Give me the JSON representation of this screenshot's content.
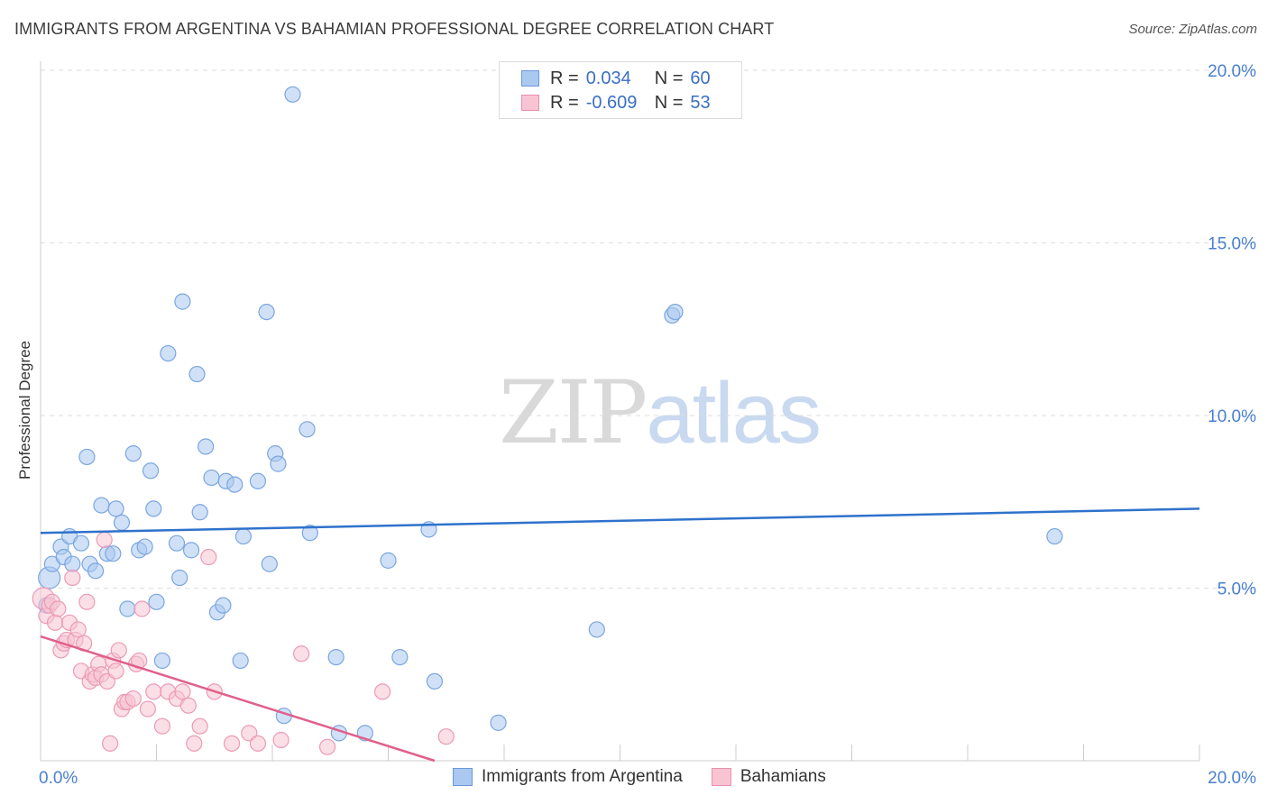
{
  "header": {
    "title": "IMMIGRANTS FROM ARGENTINA VS BAHAMIAN PROFESSIONAL DEGREE CORRELATION CHART",
    "source": "Source: ZipAtlas.com"
  },
  "watermark": {
    "zip": "ZIP",
    "atlas": "atlas"
  },
  "legend": {
    "rows": [
      {
        "r_label": "R =",
        "r_value": "0.034",
        "n_label": "N =",
        "n_value": "60",
        "color": "#aac8f0",
        "border": "#6a9ad8"
      },
      {
        "r_label": "R =",
        "r_value": "-0.609",
        "n_label": "N =",
        "n_value": "53",
        "color": "#f8c4d4",
        "border": "#e890ae"
      }
    ]
  },
  "bottom_legend": {
    "series1": "Immigrants from Argentina",
    "series2": "Bahamians"
  },
  "colors": {
    "blue_fill": "#aac8f0",
    "blue_stroke": "#7aa6e0",
    "blue_line": "#2f72cc",
    "pink_fill": "#f8c4d4",
    "pink_stroke": "#ec9ab5",
    "pink_line": "#e0608c",
    "grid": "#dddddd",
    "tick_text": "#4a7fd0"
  },
  "chart_data": {
    "type": "scatter",
    "title": "IMMIGRANTS FROM ARGENTINA VS BAHAMIAN PROFESSIONAL DEGREE CORRELATION CHART",
    "xlabel": "",
    "ylabel": "Professional Degree",
    "xlim": [
      0,
      20
    ],
    "ylim": [
      0,
      20
    ],
    "x_tick_labels": [
      "0.0%",
      "20.0%"
    ],
    "y_ticks": [
      {
        "value": 5,
        "label": "5.0%"
      },
      {
        "value": 10,
        "label": "10.0%"
      },
      {
        "value": 15,
        "label": "15.0%"
      },
      {
        "value": 20,
        "label": "20.0%"
      }
    ],
    "grid": true,
    "series": [
      {
        "name": "Immigrants from Argentina",
        "R": 0.034,
        "N": 60,
        "trend": {
          "x": [
            0,
            20
          ],
          "y": [
            6.6,
            7.3
          ]
        },
        "points": [
          [
            0.15,
            5.3
          ],
          [
            0.2,
            5.7
          ],
          [
            0.35,
            6.2
          ],
          [
            0.4,
            5.9
          ],
          [
            0.5,
            6.5
          ],
          [
            0.55,
            5.7
          ],
          [
            0.7,
            6.3
          ],
          [
            0.8,
            8.8
          ],
          [
            0.85,
            5.7
          ],
          [
            0.95,
            5.5
          ],
          [
            1.05,
            7.4
          ],
          [
            1.15,
            6.0
          ],
          [
            1.25,
            6.0
          ],
          [
            1.3,
            7.3
          ],
          [
            1.4,
            6.9
          ],
          [
            1.5,
            4.4
          ],
          [
            1.6,
            8.9
          ],
          [
            1.7,
            6.1
          ],
          [
            1.8,
            6.2
          ],
          [
            1.9,
            8.4
          ],
          [
            1.95,
            7.3
          ],
          [
            2.0,
            4.6
          ],
          [
            2.1,
            2.9
          ],
          [
            2.2,
            11.8
          ],
          [
            2.35,
            6.3
          ],
          [
            2.4,
            5.3
          ],
          [
            2.45,
            13.3
          ],
          [
            2.6,
            6.1
          ],
          [
            2.7,
            11.2
          ],
          [
            2.75,
            7.2
          ],
          [
            2.85,
            9.1
          ],
          [
            2.95,
            8.2
          ],
          [
            3.05,
            4.3
          ],
          [
            3.15,
            4.5
          ],
          [
            3.2,
            8.1
          ],
          [
            3.35,
            8.0
          ],
          [
            3.45,
            2.9
          ],
          [
            3.5,
            6.5
          ],
          [
            3.75,
            8.1
          ],
          [
            3.9,
            13.0
          ],
          [
            3.95,
            5.7
          ],
          [
            4.05,
            8.9
          ],
          [
            4.1,
            8.6
          ],
          [
            4.2,
            1.3
          ],
          [
            4.35,
            19.3
          ],
          [
            4.6,
            9.6
          ],
          [
            4.65,
            6.6
          ],
          [
            5.1,
            3.0
          ],
          [
            5.15,
            0.8
          ],
          [
            5.6,
            0.8
          ],
          [
            6.0,
            5.8
          ],
          [
            6.2,
            3.0
          ],
          [
            6.7,
            6.7
          ],
          [
            6.8,
            2.3
          ],
          [
            7.9,
            1.1
          ],
          [
            9.6,
            3.8
          ],
          [
            10.9,
            12.9
          ],
          [
            10.95,
            13.0
          ],
          [
            17.5,
            6.5
          ],
          [
            0.1,
            4.5
          ]
        ]
      },
      {
        "name": "Bahamians",
        "R": -0.609,
        "N": 53,
        "trend": {
          "x": [
            0,
            6.8
          ],
          "y": [
            3.6,
            0.0
          ]
        },
        "points": [
          [
            0.05,
            4.7
          ],
          [
            0.1,
            4.2
          ],
          [
            0.15,
            4.5
          ],
          [
            0.2,
            4.6
          ],
          [
            0.25,
            4.0
          ],
          [
            0.3,
            4.4
          ],
          [
            0.35,
            3.2
          ],
          [
            0.4,
            3.4
          ],
          [
            0.45,
            3.5
          ],
          [
            0.5,
            4.0
          ],
          [
            0.55,
            5.3
          ],
          [
            0.6,
            3.5
          ],
          [
            0.65,
            3.8
          ],
          [
            0.7,
            2.6
          ],
          [
            0.75,
            3.4
          ],
          [
            0.8,
            4.6
          ],
          [
            0.85,
            2.3
          ],
          [
            0.9,
            2.5
          ],
          [
            0.95,
            2.4
          ],
          [
            1.0,
            2.8
          ],
          [
            1.05,
            2.5
          ],
          [
            1.1,
            6.4
          ],
          [
            1.15,
            2.3
          ],
          [
            1.2,
            0.5
          ],
          [
            1.25,
            2.9
          ],
          [
            1.3,
            2.6
          ],
          [
            1.35,
            3.2
          ],
          [
            1.4,
            1.5
          ],
          [
            1.45,
            1.7
          ],
          [
            1.5,
            1.7
          ],
          [
            1.6,
            1.8
          ],
          [
            1.65,
            2.8
          ],
          [
            1.7,
            2.9
          ],
          [
            1.75,
            4.4
          ],
          [
            1.85,
            1.5
          ],
          [
            1.95,
            2.0
          ],
          [
            2.1,
            1.0
          ],
          [
            2.2,
            2.0
          ],
          [
            2.35,
            1.8
          ],
          [
            2.45,
            2.0
          ],
          [
            2.55,
            1.6
          ],
          [
            2.65,
            0.5
          ],
          [
            2.75,
            1.0
          ],
          [
            2.9,
            5.9
          ],
          [
            3.0,
            2.0
          ],
          [
            3.3,
            0.5
          ],
          [
            3.6,
            0.8
          ],
          [
            3.75,
            0.5
          ],
          [
            4.15,
            0.6
          ],
          [
            4.5,
            3.1
          ],
          [
            4.95,
            0.4
          ],
          [
            5.9,
            2.0
          ],
          [
            7.0,
            0.7
          ]
        ]
      }
    ]
  }
}
